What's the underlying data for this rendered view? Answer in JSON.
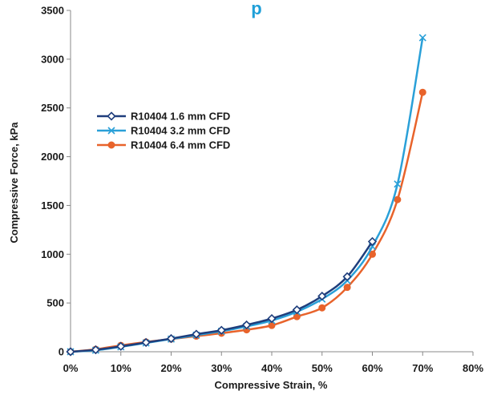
{
  "chart_data": {
    "type": "line",
    "title_fragment": "p",
    "xlabel": "Compressive Strain, %",
    "ylabel": "Compressive Force, kPa",
    "xlim": [
      0,
      80
    ],
    "ylim": [
      0,
      3500
    ],
    "x_ticks": [
      0,
      10,
      20,
      30,
      40,
      50,
      60,
      70,
      80
    ],
    "x_tick_labels": [
      "0%",
      "10%",
      "20%",
      "30%",
      "40%",
      "50%",
      "60%",
      "70%",
      "80%"
    ],
    "y_ticks": [
      0,
      500,
      1000,
      1500,
      2000,
      2500,
      3000,
      3500
    ],
    "y_tick_labels": [
      "0",
      "500",
      "1000",
      "1500",
      "2000",
      "2500",
      "3000",
      "3500"
    ],
    "grid": false,
    "legend_position": "upper-left",
    "series": [
      {
        "name": "R10404 1.6 mm CFD",
        "color": "#1f3e7c",
        "marker": "diamond",
        "x": [
          0,
          5,
          10,
          15,
          20,
          25,
          30,
          35,
          40,
          45,
          50,
          55,
          60
        ],
        "y": [
          0,
          20,
          55,
          95,
          135,
          180,
          220,
          275,
          340,
          430,
          570,
          770,
          1130
        ]
      },
      {
        "name": "R10404 3.2 mm CFD",
        "color": "#2aa0d8",
        "marker": "x",
        "x": [
          0,
          5,
          10,
          15,
          20,
          25,
          30,
          35,
          40,
          45,
          50,
          55,
          60,
          65,
          70
        ],
        "y": [
          0,
          15,
          50,
          90,
          130,
          170,
          210,
          260,
          320,
          410,
          540,
          730,
          1080,
          1720,
          3220
        ]
      },
      {
        "name": "R10404 6.4 mm CFD",
        "color": "#e8632b",
        "marker": "circle",
        "x": [
          0,
          5,
          10,
          15,
          20,
          25,
          30,
          35,
          40,
          45,
          50,
          55,
          60,
          65,
          70
        ],
        "y": [
          0,
          25,
          65,
          100,
          130,
          160,
          190,
          225,
          270,
          360,
          450,
          660,
          1000,
          1560,
          2660
        ]
      }
    ]
  }
}
